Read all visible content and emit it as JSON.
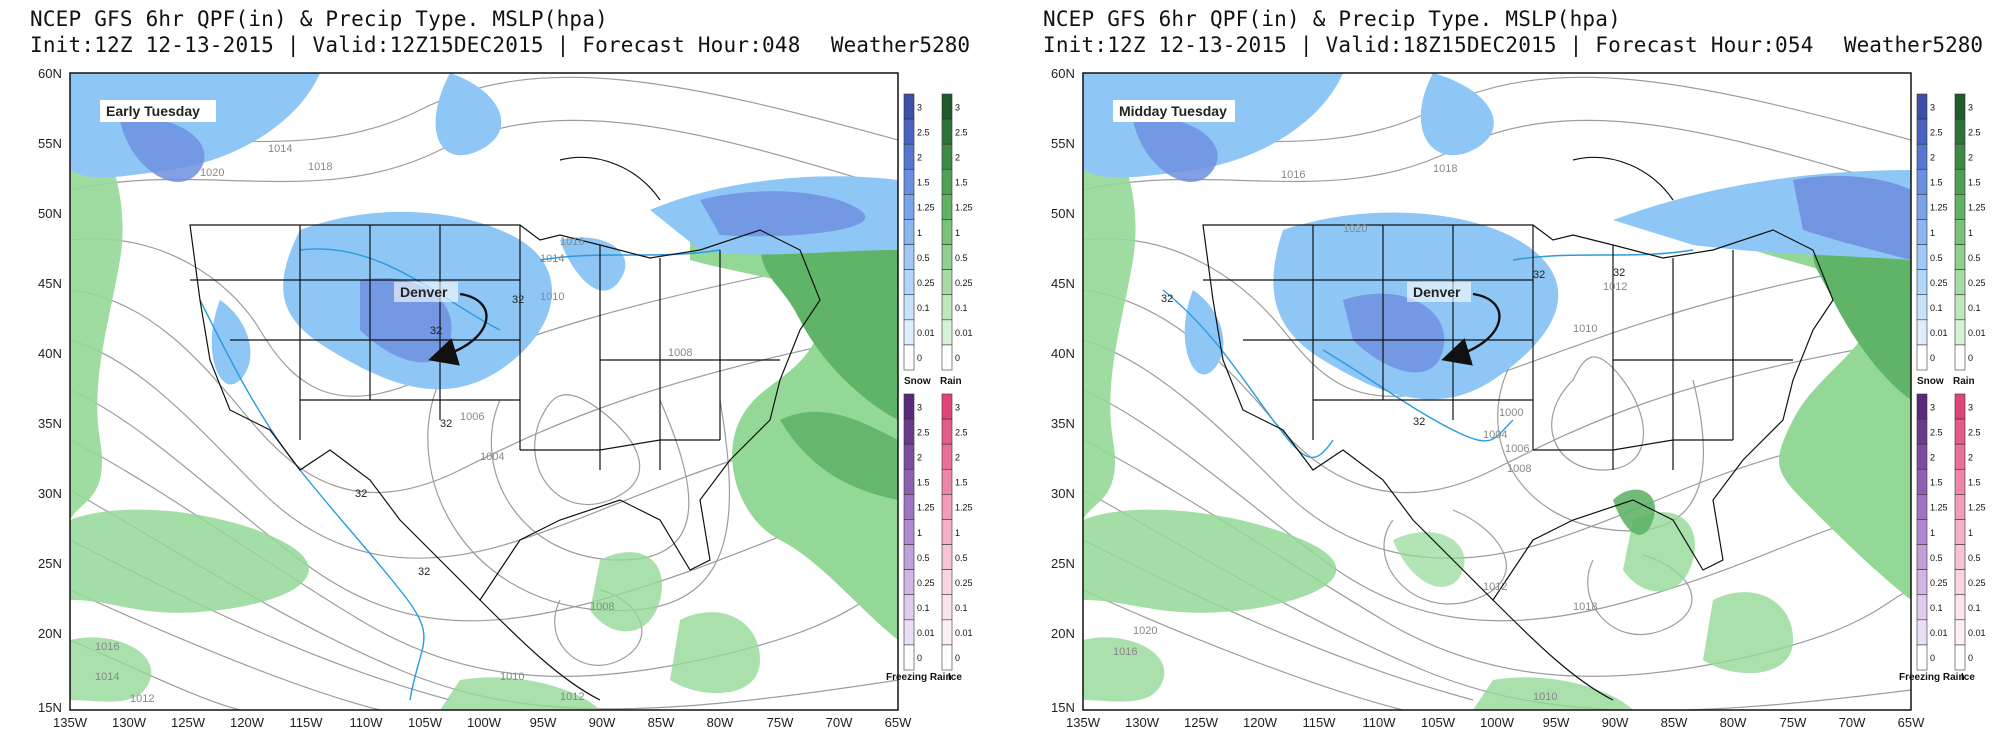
{
  "panels": [
    {
      "id": "left",
      "title_line1": "NCEP GFS 6hr QPF(in) & Precip Type. MSLP(hpa)",
      "title_line2": "Init:12Z 12-13-2015 | Valid:12Z15DEC2015 | Forecast Hour:048",
      "brand": "Weather5280",
      "annotation": "Early Tuesday",
      "city_label": "Denver",
      "isobars": [
        "1014",
        "1018",
        "1020",
        "1016",
        "1014",
        "1010",
        "1008",
        "1006",
        "1004",
        "1008",
        "1016",
        "1014",
        "1012",
        "1010",
        "1012"
      ],
      "freezing_labels": [
        "32",
        "32",
        "32",
        "32",
        "32"
      ]
    },
    {
      "id": "right",
      "title_line1": "NCEP GFS 6hr QPF(in) & Precip Type. MSLP(hpa)",
      "title_line2": "Init:12Z 12-13-2015 | Valid:18Z15DEC2015 | Forecast Hour:054",
      "brand": "Weather5280",
      "annotation": "Midday Tuesday",
      "city_label": "Denver",
      "isobars": [
        "1016",
        "1018",
        "1020",
        "1012",
        "1010",
        "1000",
        "1004",
        "1006",
        "1008",
        "1012",
        "1016",
        "1020",
        "1018",
        "1010"
      ],
      "freezing_labels": [
        "32",
        "32",
        "32",
        "32"
      ]
    }
  ],
  "lat_labels": [
    "60N",
    "55N",
    "50N",
    "45N",
    "40N",
    "35N",
    "30N",
    "25N",
    "20N",
    "15N"
  ],
  "lon_labels": [
    "135W",
    "130W",
    "125W",
    "120W",
    "115W",
    "110W",
    "105W",
    "100W",
    "95W",
    "90W",
    "85W",
    "80W",
    "75W",
    "70W",
    "65W"
  ],
  "colorbars": {
    "snow_rain_ticks": [
      "3",
      "2.5",
      "2",
      "1.5",
      "1.25",
      "1",
      "0.5",
      "0.25",
      "0.1",
      "0.01",
      "0"
    ],
    "snow_label": "Snow",
    "rain_label": "Rain",
    "fzr_ice_ticks": [
      "3",
      "2.5",
      "2",
      "1.5",
      "1.25",
      "1",
      "0.5",
      "0.25",
      "0.1",
      "0.01",
      "0"
    ],
    "freezing_rain_label": "Freezing Rain",
    "ice_label": "Ice",
    "snow_colors": [
      "#3d4fa8",
      "#4b63c0",
      "#5577d1",
      "#6a8fe0",
      "#7aa3ea",
      "#8cb6f0",
      "#9ec8f6",
      "#b0d6f9",
      "#c6e3fb",
      "#ddeefd",
      "#ffffff"
    ],
    "rain_colors": [
      "#1f5a2a",
      "#2b7336",
      "#3c8a44",
      "#4fa055",
      "#62b266",
      "#78c27a",
      "#8fd08f",
      "#a6dca4",
      "#bee7bb",
      "#d6f1d3",
      "#ffffff"
    ],
    "fzr_colors": [
      "#5a2a7a",
      "#6b3a8d",
      "#7d4ba0",
      "#8f5fb2",
      "#a073c2",
      "#b189d0",
      "#c19fdb",
      "#d0b5e5",
      "#dfcbee",
      "#ecdff5",
      "#ffffff"
    ],
    "ice_colors": [
      "#e0457a",
      "#e55b8a",
      "#ea709a",
      "#ef86aa",
      "#f29cba",
      "#f5b1c8",
      "#f8c4d5",
      "#fad5e1",
      "#fce4ec",
      "#fdf0f5",
      "#ffffff"
    ]
  },
  "colors": {
    "snow": "#8ec7f5",
    "snow_heavy": "#6f8fe0",
    "rain": "#93d897",
    "rain_heavy": "#5fb468",
    "isobar": "#9c9c9c",
    "freezing_line": "#2a9be0"
  }
}
